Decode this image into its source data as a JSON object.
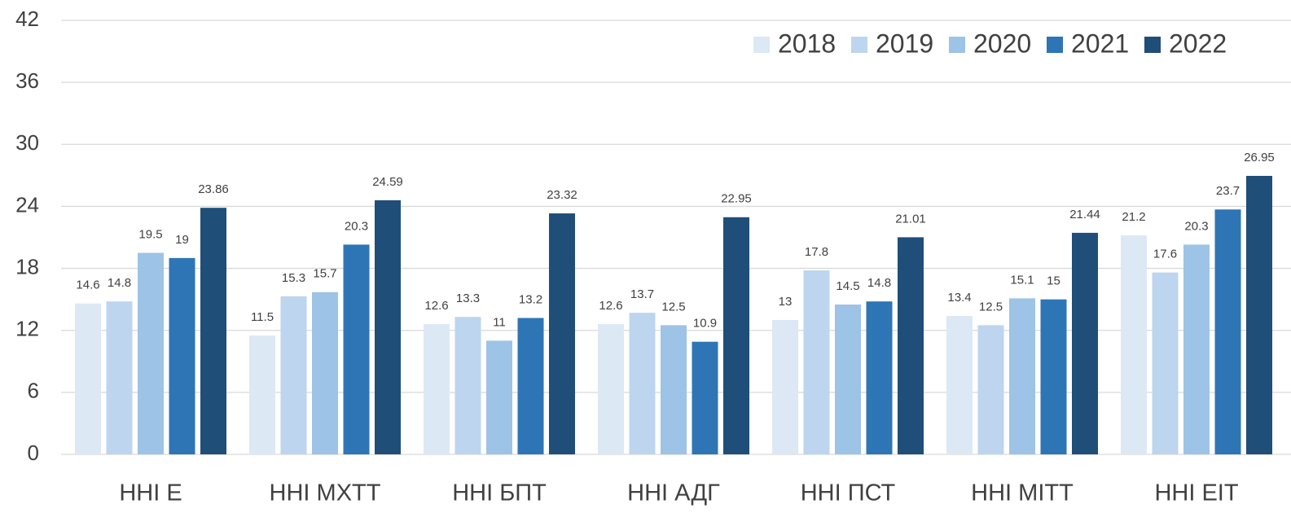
{
  "chart_data": {
    "type": "bar",
    "categories": [
      "ННІ Е",
      "ННІ МХТТ",
      "ННІ БПТ",
      "ННІ АДГ",
      "ННІ ПСТ",
      "ННІ МІТТ",
      "ННІ ЕІТ"
    ],
    "series": [
      {
        "name": "2018",
        "color": "#dde8f5",
        "values": [
          14.6,
          11.5,
          12.6,
          12.6,
          13,
          13.4,
          21.2
        ]
      },
      {
        "name": "2019",
        "color": "#bdd5ee",
        "values": [
          14.8,
          15.3,
          13.3,
          13.7,
          17.8,
          12.5,
          17.6
        ]
      },
      {
        "name": "2020",
        "color": "#9dc3e6",
        "values": [
          19.5,
          15.7,
          11,
          12.5,
          14.5,
          15.1,
          20.3
        ]
      },
      {
        "name": "2021",
        "color": "#2e75b6",
        "values": [
          19,
          20.3,
          13.2,
          10.9,
          14.8,
          15,
          23.7
        ]
      },
      {
        "name": "2022",
        "color": "#1f4e79",
        "values": [
          23.86,
          24.59,
          23.32,
          22.95,
          21.01,
          21.44,
          26.95
        ]
      }
    ],
    "ylim": [
      0,
      42
    ],
    "yticks": [
      0,
      6,
      12,
      18,
      24,
      30,
      36,
      42
    ],
    "grid": true,
    "legend": "top-right"
  }
}
